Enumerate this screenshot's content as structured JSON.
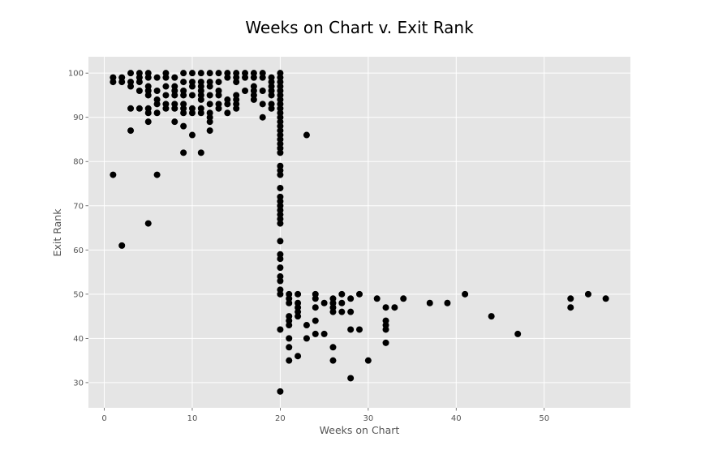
{
  "chart_data": {
    "type": "scatter",
    "title": "Weeks on Chart v. Exit Rank",
    "xlabel": "Weeks on Chart",
    "ylabel": "Exit Rank",
    "xlim": [
      -1.8,
      59.8
    ],
    "ylim": [
      24.3,
      103.7
    ],
    "xticks": [
      0,
      10,
      20,
      30,
      40,
      50
    ],
    "yticks": [
      30,
      40,
      50,
      60,
      70,
      80,
      90,
      100
    ],
    "grid": true,
    "legend": "none",
    "colors": {
      "background": "#e5e5e5",
      "grid": "#ffffff",
      "marker": "#000000",
      "text": "#555555"
    },
    "points": [
      [
        1,
        99
      ],
      [
        1,
        98
      ],
      [
        1,
        77
      ],
      [
        2,
        99
      ],
      [
        2,
        98
      ],
      [
        2,
        61
      ],
      [
        3,
        100
      ],
      [
        3,
        98
      ],
      [
        3,
        97
      ],
      [
        3,
        92
      ],
      [
        3,
        87
      ],
      [
        4,
        100
      ],
      [
        4,
        99
      ],
      [
        4,
        98
      ],
      [
        4,
        96
      ],
      [
        4,
        92
      ],
      [
        5,
        100
      ],
      [
        5,
        99
      ],
      [
        5,
        97
      ],
      [
        5,
        96
      ],
      [
        5,
        95
      ],
      [
        5,
        92
      ],
      [
        5,
        91
      ],
      [
        5,
        89
      ],
      [
        5,
        66
      ],
      [
        6,
        99
      ],
      [
        6,
        96
      ],
      [
        6,
        94
      ],
      [
        6,
        93
      ],
      [
        6,
        91
      ],
      [
        6,
        77
      ],
      [
        7,
        100
      ],
      [
        7,
        99
      ],
      [
        7,
        97
      ],
      [
        7,
        95
      ],
      [
        7,
        93
      ],
      [
        7,
        92
      ],
      [
        8,
        99
      ],
      [
        8,
        97
      ],
      [
        8,
        96
      ],
      [
        8,
        95
      ],
      [
        8,
        93
      ],
      [
        8,
        92
      ],
      [
        8,
        89
      ],
      [
        9,
        100
      ],
      [
        9,
        98
      ],
      [
        9,
        96
      ],
      [
        9,
        95
      ],
      [
        9,
        93
      ],
      [
        9,
        92
      ],
      [
        9,
        91
      ],
      [
        9,
        88
      ],
      [
        9,
        82
      ],
      [
        10,
        100
      ],
      [
        10,
        98
      ],
      [
        10,
        97
      ],
      [
        10,
        95
      ],
      [
        10,
        92
      ],
      [
        10,
        91
      ],
      [
        10,
        86
      ],
      [
        11,
        100
      ],
      [
        11,
        98
      ],
      [
        11,
        97
      ],
      [
        11,
        96
      ],
      [
        11,
        95
      ],
      [
        11,
        94
      ],
      [
        11,
        92
      ],
      [
        11,
        91
      ],
      [
        11,
        82
      ],
      [
        12,
        100
      ],
      [
        12,
        98
      ],
      [
        12,
        97
      ],
      [
        12,
        95
      ],
      [
        12,
        93
      ],
      [
        12,
        91
      ],
      [
        12,
        90
      ],
      [
        12,
        89
      ],
      [
        12,
        87
      ],
      [
        13,
        100
      ],
      [
        13,
        98
      ],
      [
        13,
        96
      ],
      [
        13,
        95
      ],
      [
        13,
        93
      ],
      [
        13,
        92
      ],
      [
        14,
        100
      ],
      [
        14,
        99
      ],
      [
        14,
        94
      ],
      [
        14,
        93
      ],
      [
        14,
        91
      ],
      [
        15,
        100
      ],
      [
        15,
        99
      ],
      [
        15,
        98
      ],
      [
        15,
        95
      ],
      [
        15,
        94
      ],
      [
        15,
        93
      ],
      [
        15,
        92
      ],
      [
        16,
        100
      ],
      [
        16,
        99
      ],
      [
        16,
        96
      ],
      [
        17,
        100
      ],
      [
        17,
        99
      ],
      [
        17,
        97
      ],
      [
        17,
        96
      ],
      [
        17,
        95
      ],
      [
        17,
        94
      ],
      [
        18,
        100
      ],
      [
        18,
        99
      ],
      [
        18,
        96
      ],
      [
        18,
        93
      ],
      [
        18,
        90
      ],
      [
        19,
        99
      ],
      [
        19,
        98
      ],
      [
        19,
        97
      ],
      [
        19,
        96
      ],
      [
        19,
        95
      ],
      [
        19,
        93
      ],
      [
        19,
        92
      ],
      [
        20,
        100
      ],
      [
        20,
        99
      ],
      [
        20,
        98
      ],
      [
        20,
        97
      ],
      [
        20,
        96
      ],
      [
        20,
        95
      ],
      [
        20,
        94
      ],
      [
        20,
        93
      ],
      [
        20,
        92
      ],
      [
        20,
        91
      ],
      [
        20,
        90
      ],
      [
        20,
        89
      ],
      [
        20,
        88
      ],
      [
        20,
        87
      ],
      [
        20,
        86
      ],
      [
        20,
        85
      ],
      [
        20,
        84
      ],
      [
        20,
        83
      ],
      [
        20,
        82
      ],
      [
        20,
        79
      ],
      [
        20,
        78
      ],
      [
        20,
        77
      ],
      [
        20,
        74
      ],
      [
        20,
        72
      ],
      [
        20,
        71
      ],
      [
        20,
        70
      ],
      [
        20,
        69
      ],
      [
        20,
        68
      ],
      [
        20,
        67
      ],
      [
        20,
        66
      ],
      [
        20,
        62
      ],
      [
        20,
        59
      ],
      [
        20,
        58
      ],
      [
        20,
        56
      ],
      [
        20,
        54
      ],
      [
        20,
        53
      ],
      [
        20,
        51
      ],
      [
        20,
        50
      ],
      [
        20,
        42
      ],
      [
        20,
        28
      ],
      [
        21,
        50
      ],
      [
        21,
        49
      ],
      [
        21,
        48
      ],
      [
        21,
        45
      ],
      [
        21,
        44
      ],
      [
        21,
        43
      ],
      [
        21,
        40
      ],
      [
        21,
        38
      ],
      [
        21,
        35
      ],
      [
        22,
        50
      ],
      [
        22,
        48
      ],
      [
        22,
        47
      ],
      [
        22,
        46
      ],
      [
        22,
        45
      ],
      [
        22,
        36
      ],
      [
        23,
        86
      ],
      [
        23,
        43
      ],
      [
        23,
        40
      ],
      [
        24,
        50
      ],
      [
        24,
        49
      ],
      [
        24,
        47
      ],
      [
        24,
        44
      ],
      [
        24,
        41
      ],
      [
        25,
        48
      ],
      [
        25,
        41
      ],
      [
        26,
        49
      ],
      [
        26,
        48
      ],
      [
        26,
        47
      ],
      [
        26,
        46
      ],
      [
        26,
        38
      ],
      [
        26,
        35
      ],
      [
        27,
        50
      ],
      [
        27,
        48
      ],
      [
        27,
        46
      ],
      [
        28,
        49
      ],
      [
        28,
        46
      ],
      [
        28,
        42
      ],
      [
        28,
        31
      ],
      [
        29,
        50
      ],
      [
        29,
        42
      ],
      [
        30,
        35
      ],
      [
        31,
        49
      ],
      [
        32,
        47
      ],
      [
        32,
        44
      ],
      [
        32,
        43
      ],
      [
        32,
        42
      ],
      [
        32,
        39
      ],
      [
        33,
        47
      ],
      [
        34,
        49
      ],
      [
        37,
        48
      ],
      [
        39,
        48
      ],
      [
        41,
        50
      ],
      [
        44,
        45
      ],
      [
        47,
        41
      ],
      [
        53,
        49
      ],
      [
        53,
        47
      ],
      [
        55,
        50
      ],
      [
        57,
        49
      ]
    ]
  }
}
